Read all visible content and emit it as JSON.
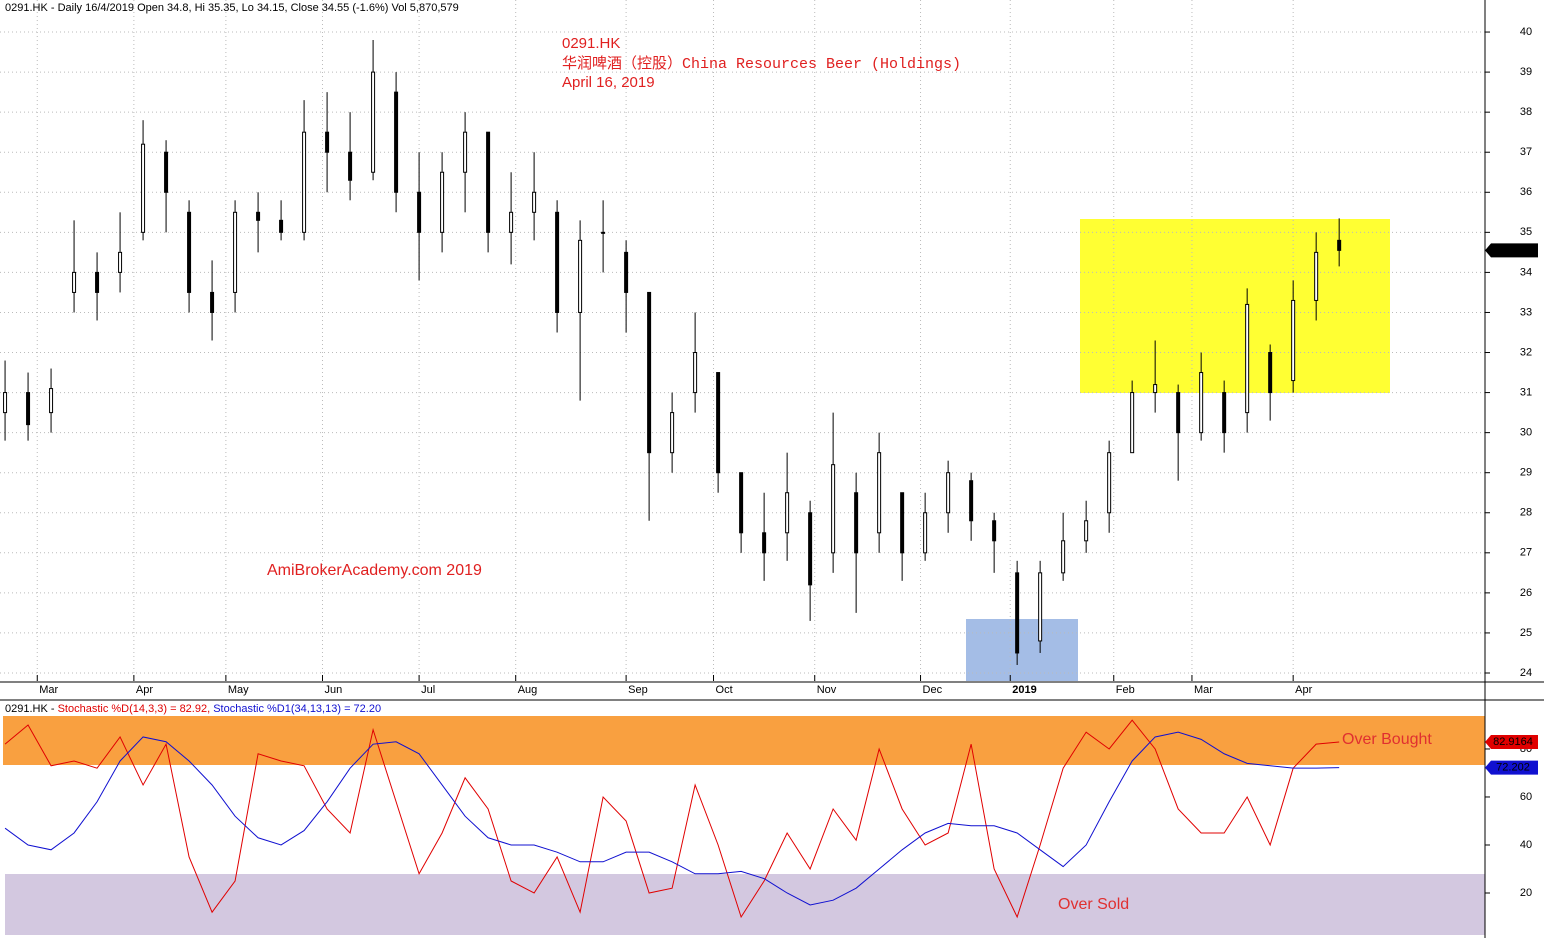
{
  "chart_data": [
    {
      "type": "candlestick",
      "header": "0291.HK - Daily 16/4/2019 Open 34.8, Hi 35.35, Lo 34.15, Close 34.55 (-1.6%) Vol 5,870,579",
      "title_lines": [
        "0291.HK",
        "华润啤酒（控股）China Resources Beer (Holdings)",
        "April 16, 2019"
      ],
      "watermark": "AmiBrokerAcademy.com   2019",
      "x": [
        0,
        5,
        10,
        15,
        20,
        25,
        30,
        35,
        40,
        45,
        50,
        55,
        60,
        65,
        70,
        75,
        80,
        85,
        90,
        95,
        100,
        105,
        110,
        115,
        120,
        125,
        130,
        135,
        140,
        145,
        150,
        155,
        160,
        165,
        170,
        175,
        180,
        185,
        190,
        195,
        200,
        205,
        210,
        215,
        220,
        225,
        230,
        235,
        240,
        245,
        250,
        255,
        260,
        265,
        270,
        275,
        280,
        285,
        290
      ],
      "open": [
        30.5,
        31,
        30.5,
        33.5,
        34,
        34,
        35,
        37,
        35.5,
        33.5,
        33.5,
        35.5,
        35.3,
        35,
        37.5,
        37,
        36.5,
        38.5,
        36,
        35,
        36.5,
        37.5,
        35,
        35.5,
        35.5,
        33,
        35,
        34.5,
        33.5,
        29.5,
        31,
        31.5,
        29,
        27.5,
        27.5,
        28,
        27,
        28.5,
        27.5,
        28.5,
        27,
        28,
        28.8,
        27.8,
        26.5,
        24.8,
        26.5,
        27.3,
        28,
        29.5,
        31,
        31,
        30,
        31,
        30.5,
        32,
        31.3,
        33.3,
        34.8
      ],
      "high": [
        31.8,
        31.5,
        31.6,
        35.3,
        34.5,
        35.5,
        37.8,
        37.3,
        35.8,
        34.3,
        35.8,
        36,
        35.8,
        38.3,
        38.5,
        38,
        39.8,
        39,
        37,
        37,
        38,
        37.5,
        36.5,
        37,
        35.8,
        35.3,
        35.8,
        34.8,
        33.5,
        31,
        33,
        31.5,
        29,
        28.5,
        29.5,
        28.3,
        30.5,
        29,
        30,
        28.5,
        28.5,
        29.3,
        29,
        28,
        26.8,
        26.8,
        28,
        28.3,
        29.8,
        31.3,
        32.3,
        31.2,
        32,
        31.3,
        33.6,
        32.2,
        33.8,
        35,
        35.35
      ],
      "low": [
        29.8,
        29.8,
        30,
        33,
        32.8,
        33.5,
        34.8,
        35,
        33,
        32.3,
        33,
        34.5,
        34.8,
        34.8,
        36,
        35.8,
        36.3,
        35.5,
        33.8,
        34.5,
        35.5,
        34.5,
        34.2,
        34.8,
        32.5,
        30.8,
        34,
        32.5,
        27.8,
        29,
        30.5,
        28.5,
        27,
        26.3,
        26.8,
        25.3,
        26.5,
        25.5,
        27,
        26.3,
        26.8,
        27.5,
        27.3,
        26.5,
        24.2,
        24.5,
        26.3,
        27,
        27.5,
        29.5,
        30.5,
        28.8,
        29.8,
        29.5,
        30,
        30.3,
        31,
        32.8,
        34.15
      ],
      "close": [
        31,
        30.2,
        31.1,
        34,
        33.5,
        34.5,
        37.2,
        36,
        33.5,
        33,
        35.5,
        35.3,
        35,
        37.5,
        37,
        36.3,
        39,
        36,
        35,
        36.5,
        37.5,
        35,
        35.5,
        36,
        33,
        34.8,
        35,
        33.5,
        29.5,
        30.5,
        32,
        29,
        27.5,
        27,
        28.5,
        26.2,
        29.2,
        27,
        29.5,
        27,
        28,
        29,
        27.8,
        27.3,
        24.5,
        26.5,
        27.3,
        27.8,
        29.5,
        31,
        31.2,
        30,
        31.5,
        30,
        33.2,
        31,
        33.3,
        34.5,
        34.55
      ],
      "xlim": [
        -1.1,
        321.7
      ],
      "xticks": [
        {
          "value": 7,
          "label": "Mar"
        },
        {
          "value": 28,
          "label": "Apr"
        },
        {
          "value": 48,
          "label": "May"
        },
        {
          "value": 69,
          "label": "Jun"
        },
        {
          "value": 90,
          "label": "Jul"
        },
        {
          "value": 111,
          "label": "Aug"
        },
        {
          "value": 135,
          "label": "Sep"
        },
        {
          "value": 154,
          "label": "Oct"
        },
        {
          "value": 176,
          "label": "Nov"
        },
        {
          "value": 199,
          "label": "Dec"
        },
        {
          "value": 218.5,
          "label": "2019"
        },
        {
          "value": 241,
          "label": "Feb"
        },
        {
          "value": 258,
          "label": "Mar"
        },
        {
          "value": 280,
          "label": "Apr"
        }
      ],
      "ylim": [
        23.8,
        40.8
      ],
      "yticks": [
        24,
        25,
        26,
        27,
        28,
        29,
        30,
        31,
        32,
        33,
        34,
        35,
        36,
        37,
        38,
        39,
        40
      ],
      "grid": true
    },
    {
      "type": "line",
      "header_parts": [
        "0291.HK - ",
        "Stochastic %D(14,3,3) = 82.92, ",
        "Stochastic %D1(34,13,13) = 72.20"
      ],
      "annotations": [
        "Over Bought",
        "Over Sold"
      ],
      "x": [
        0,
        5,
        10,
        15,
        20,
        25,
        30,
        35,
        40,
        45,
        50,
        55,
        60,
        65,
        70,
        75,
        80,
        85,
        90,
        95,
        100,
        105,
        110,
        115,
        120,
        125,
        130,
        135,
        140,
        145,
        150,
        155,
        160,
        165,
        170,
        175,
        180,
        185,
        190,
        195,
        200,
        205,
        210,
        215,
        220,
        225,
        230,
        235,
        240,
        245,
        250,
        255,
        260,
        265,
        270,
        275,
        280,
        285,
        290
      ],
      "series": [
        {
          "name": "Stochastic %D(14,3,3)",
          "color": "#e00000",
          "values": [
            82,
            90,
            73,
            75,
            72,
            85,
            65,
            82,
            35,
            12,
            25,
            78,
            75,
            73,
            55,
            45,
            88,
            58,
            28,
            45,
            68,
            55,
            25,
            20,
            35,
            12,
            60,
            50,
            20,
            22,
            65,
            40,
            10,
            25,
            45,
            30,
            55,
            42,
            80,
            55,
            40,
            45,
            82,
            30,
            10,
            40,
            72,
            87,
            80,
            92,
            80,
            55,
            45,
            45,
            60,
            40,
            72,
            82,
            82.9164
          ]
        },
        {
          "name": "Stochastic %D1(34,13,13)",
          "color": "#1010d0",
          "values": [
            47,
            40,
            38,
            45,
            58,
            75,
            85,
            83,
            75,
            65,
            52,
            43,
            40,
            46,
            58,
            72,
            82,
            83,
            78,
            65,
            52,
            43,
            40,
            40,
            37,
            33,
            33,
            37,
            37,
            33,
            28,
            28,
            29,
            26,
            20,
            15,
            17,
            22,
            30,
            38,
            45,
            49,
            48,
            48,
            45,
            38,
            31,
            40,
            58,
            75,
            85,
            87,
            84,
            78,
            74,
            73,
            72,
            72,
            72.202
          ]
        }
      ],
      "xlim": [
        -1.1,
        321.7
      ],
      "ylim": [
        1.25,
        100.4
      ],
      "yticks": [
        20,
        40,
        60,
        80
      ],
      "grid": false
    }
  ]
}
